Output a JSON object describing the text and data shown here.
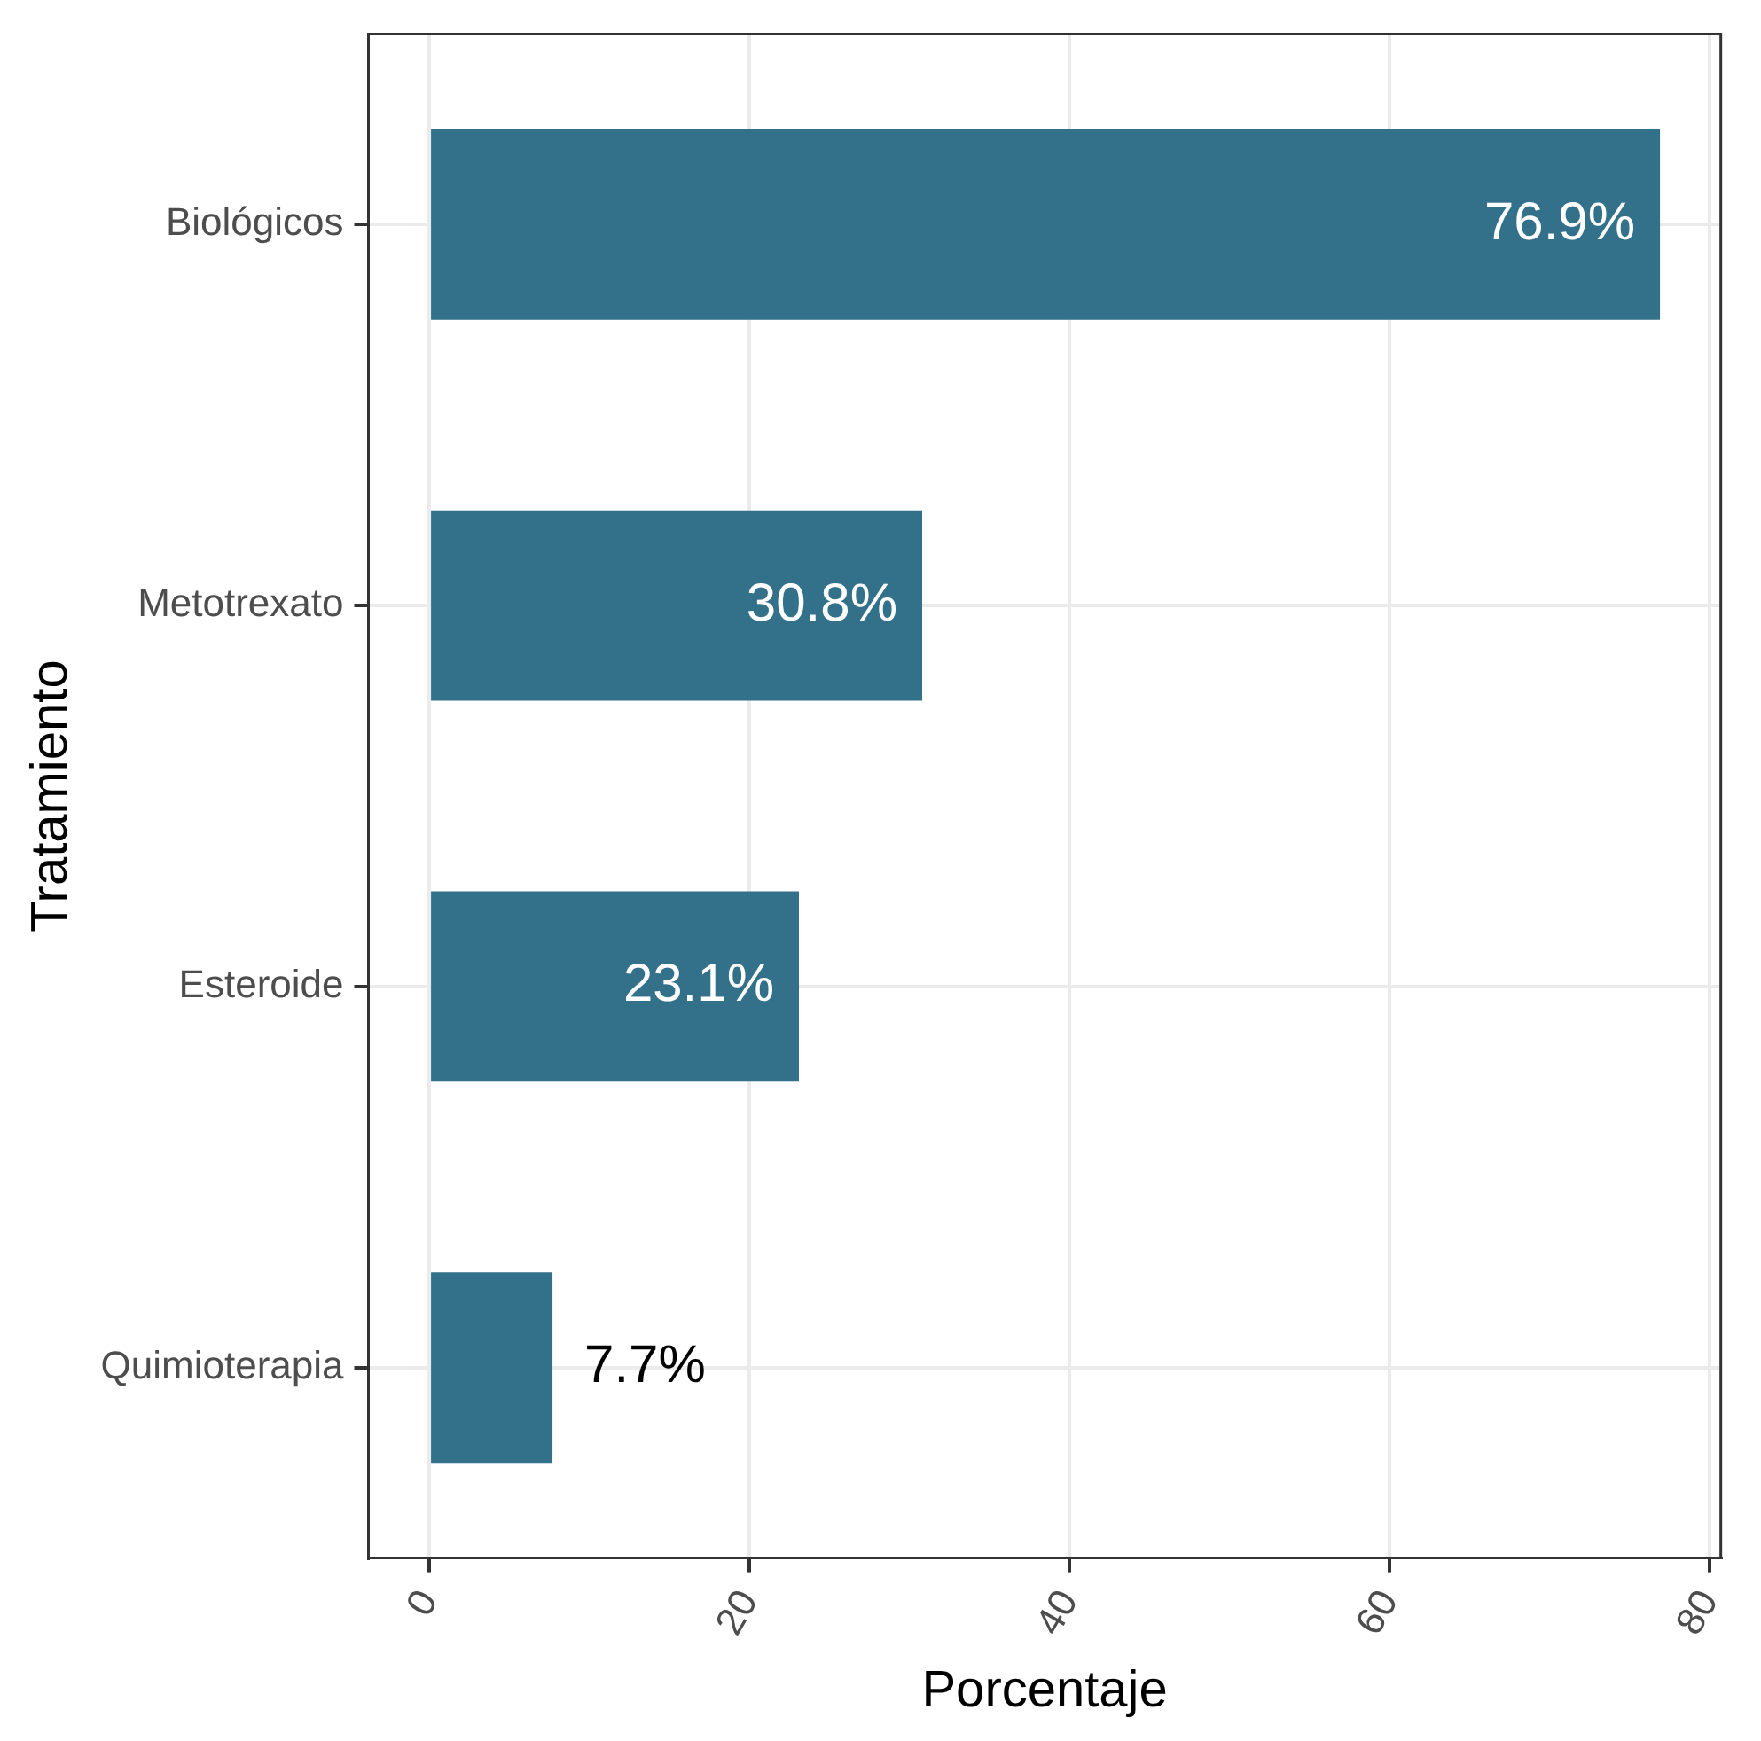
{
  "chart_data": {
    "type": "bar",
    "orientation": "horizontal",
    "xlabel": "Porcentaje",
    "ylabel": "Tratamiento",
    "categories": [
      "Biológicos",
      "Metotrexato",
      "Esteroide",
      "Quimioterapia"
    ],
    "values": [
      76.9,
      30.8,
      23.1,
      7.7
    ],
    "value_labels": [
      "76.9%",
      "30.8%",
      "23.1%",
      "7.7%"
    ],
    "color": "#33718a",
    "xlim": [
      -3.8,
      80.7
    ],
    "xticks": [
      0,
      20,
      40,
      60,
      80
    ],
    "grid": true,
    "legend": false
  }
}
